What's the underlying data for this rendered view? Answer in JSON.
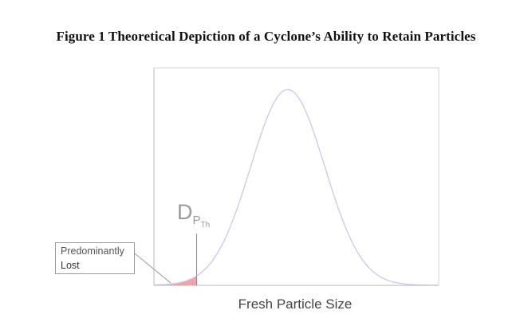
{
  "figure_title": "Figure 1 Theoretical Depiction of a Cyclone’s Ability to Retain Particles",
  "chart_data": {
    "type": "area",
    "title": "Figure 1 Theoretical Depiction of a Cyclone’s Ability to Retain Particles",
    "xlabel": "Fresh Particle Size",
    "ylabel": "",
    "xlim": [
      0,
      1
    ],
    "ylim": [
      0,
      1
    ],
    "grid": false,
    "series": [
      {
        "kind": "normal-distribution",
        "mean": 0.47,
        "sd": 0.13,
        "peak": 1.0,
        "color": "#c8c8f0"
      }
    ],
    "shaded_region": {
      "x_from": 0,
      "x_to": 0.15,
      "color": "#f4a0a8"
    },
    "annotations": [
      {
        "label_main": "D",
        "label_sub": "P",
        "label_subsub": "Th",
        "x": 0.15
      },
      {
        "line1": "Predominantly",
        "line2": "Lost"
      }
    ]
  },
  "colors": {
    "curve": "#c8c8f0",
    "shade": "#f4a0a8",
    "axis": "#b8b8b8"
  }
}
